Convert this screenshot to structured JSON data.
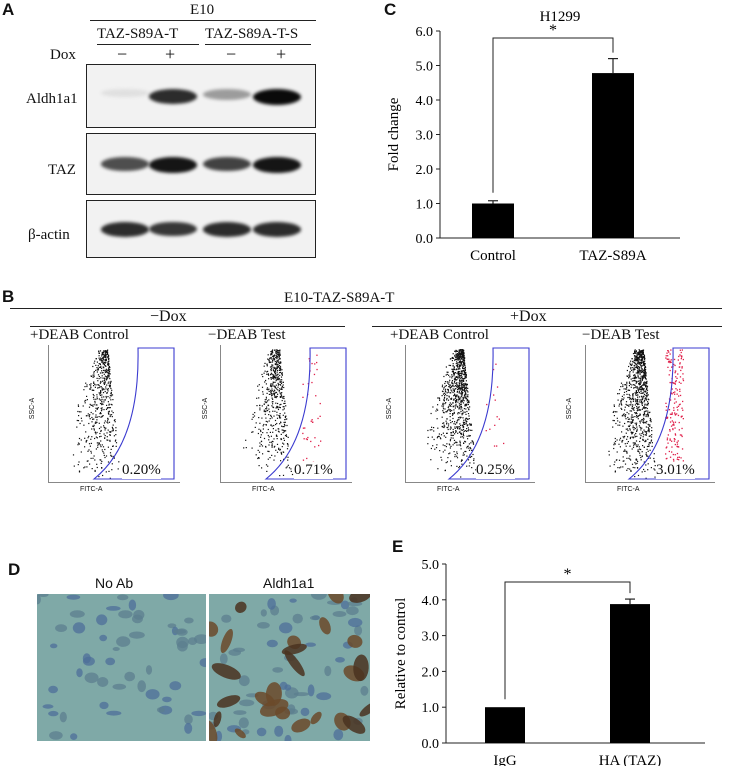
{
  "panel_a": {
    "letter": "A",
    "top_label": "E10",
    "groups": [
      "TAZ-S89A-T",
      "TAZ-S89A-T-S"
    ],
    "dox_label": "Dox",
    "dox_states": [
      "−",
      "+",
      "−",
      "+"
    ],
    "rows": [
      {
        "label": "Aldh1a1",
        "band_intensity": [
          0.05,
          0.85,
          0.35,
          1.0
        ]
      },
      {
        "label": "TAZ",
        "band_intensity": [
          0.7,
          0.95,
          0.75,
          0.95
        ]
      },
      {
        "label": "β-actin",
        "band_intensity": [
          0.85,
          0.8,
          0.85,
          0.85
        ]
      }
    ]
  },
  "panel_b": {
    "letter": "B",
    "title": "E10-TAZ-S89A-T",
    "conditions": [
      "−Dox",
      "+Dox"
    ],
    "plots": [
      {
        "label": "+DEAB Control",
        "percent": "0.20%",
        "y_axis": "SSC-A",
        "x_axis": "FITC-A",
        "red_fraction": 0.0
      },
      {
        "label": "−DEAB Test",
        "percent": "0.71%",
        "y_axis": "SSC-A",
        "x_axis": "FITC-A",
        "red_fraction": 0.05
      },
      {
        "label": "+DEAB Control",
        "percent": "0.25%",
        "y_axis": "SSC-A",
        "x_axis": "FITC-A",
        "red_fraction": 0.02
      },
      {
        "label": "−DEAB Test",
        "percent": "3.01%",
        "y_axis": "SSC-A",
        "x_axis": "FITC-A",
        "red_fraction": 0.25
      }
    ]
  },
  "panel_d": {
    "letter": "D",
    "images": [
      {
        "label": "No Ab",
        "stain": "negative"
      },
      {
        "label": "Aldh1a1",
        "stain": "positive"
      }
    ]
  },
  "chart_data": [
    {
      "panel": "C",
      "type": "bar",
      "title": "H1299",
      "categories": [
        "Control",
        "TAZ-S89A"
      ],
      "values": [
        1.0,
        4.78
      ],
      "errors": [
        0.08,
        0.42
      ],
      "ylabel": "Fold change",
      "xlabel": "",
      "ylim": [
        0,
        6.0
      ],
      "yticks": [
        "0.0",
        "1.0",
        "2.0",
        "3.0",
        "4.0",
        "5.0",
        "6.0"
      ],
      "significance": "*",
      "bar_color": "#000000"
    },
    {
      "panel": "E",
      "type": "bar",
      "title": "",
      "categories": [
        "IgG",
        "HA (TAZ)"
      ],
      "values": [
        1.0,
        3.88
      ],
      "errors": [
        0.0,
        0.14
      ],
      "ylabel": "Relative to control",
      "xlabel": "",
      "ylim": [
        0,
        5.0
      ],
      "yticks": [
        "0.0",
        "1.0",
        "2.0",
        "3.0",
        "4.0",
        "5.0"
      ],
      "significance": "*",
      "bar_color": "#000000"
    }
  ]
}
